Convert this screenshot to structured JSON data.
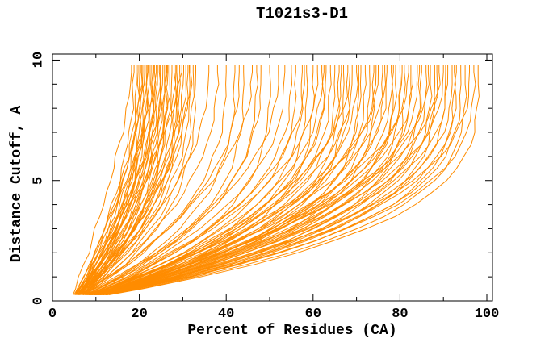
{
  "chart_data": {
    "type": "line",
    "title": "T1021s3-D1",
    "xlabel": "Percent of Residues (CA)",
    "ylabel": "Distance Cutoff, A",
    "xlim": [
      0,
      101.3
    ],
    "ylim": [
      0,
      10.25
    ],
    "x_ticks": [
      0,
      20,
      40,
      60,
      80,
      100
    ],
    "x_minor_ticks": [
      10,
      30,
      50,
      70,
      90
    ],
    "y_ticks": [
      0,
      5,
      10
    ],
    "y_minor_ticks": [
      1,
      2,
      3,
      4,
      6,
      7,
      8,
      9
    ],
    "grid": false,
    "legend": "none",
    "background": "#ffffff",
    "axis_color": "#000000",
    "series_color": "#ff8c00",
    "cutoff_step_A": 0.5,
    "cutoff_max_A": 9.5,
    "curves_schema": [
      "percent_at_9.5A",
      "percent_at_cutoff_0.25A",
      "envelope_exponent_b"
    ],
    "curves": [
      [
        18.2,
        4.2,
        1.4
      ],
      [
        18.8,
        4.6,
        1.9
      ],
      [
        19.3,
        5.0,
        2.1
      ],
      [
        19.7,
        5.4,
        2.3
      ],
      [
        20.1,
        5.8,
        2.5
      ],
      [
        20.4,
        4.2,
        2.7
      ],
      [
        20.8,
        4.6,
        2.9
      ],
      [
        21.2,
        5.0,
        1.5
      ],
      [
        21.6,
        5.4,
        1.9
      ],
      [
        22.0,
        5.8,
        2.1
      ],
      [
        22.3,
        4.2,
        2.3
      ],
      [
        22.7,
        4.6,
        2.5
      ],
      [
        23.1,
        5.0,
        2.7
      ],
      [
        23.5,
        5.4,
        2.9
      ],
      [
        23.9,
        5.8,
        1.3
      ],
      [
        24.2,
        4.2,
        1.9
      ],
      [
        24.6,
        4.6,
        2.1
      ],
      [
        25.0,
        5.0,
        2.3
      ],
      [
        25.4,
        5.4,
        2.5
      ],
      [
        25.8,
        5.8,
        2.7
      ],
      [
        26.2,
        4.2,
        2.9
      ],
      [
        26.6,
        4.6,
        1.45
      ],
      [
        27.0,
        5.0,
        1.9
      ],
      [
        27.5,
        5.4,
        2.1
      ],
      [
        28.0,
        5.8,
        2.3
      ],
      [
        28.4,
        4.2,
        2.5
      ],
      [
        28.9,
        4.6,
        2.7
      ],
      [
        29.3,
        5.0,
        2.9
      ],
      [
        29.8,
        5.4,
        1.35
      ],
      [
        30.2,
        5.8,
        1.9
      ],
      [
        30.7,
        4.2,
        2.1
      ],
      [
        31.2,
        4.6,
        2.3
      ],
      [
        31.8,
        5.0,
        2.5
      ],
      [
        32.4,
        5.4,
        2.7
      ],
      [
        33.0,
        5.8,
        2.9
      ],
      [
        20.5,
        4.2,
        1.8
      ],
      [
        21.9,
        4.6,
        2.0
      ],
      [
        23.3,
        5.0,
        2.2
      ],
      [
        24.8,
        5.4,
        2.4
      ],
      [
        26.4,
        5.8,
        2.6
      ],
      [
        28.6,
        4.2,
        2.8
      ],
      [
        31.5,
        4.6,
        2.0
      ],
      [
        36.0,
        4.4,
        2.0
      ],
      [
        38.0,
        4.8,
        2.25
      ],
      [
        40.0,
        5.2,
        2.5
      ],
      [
        42.0,
        5.6,
        2.75
      ],
      [
        44.0,
        4.4,
        3.0
      ],
      [
        46.0,
        4.8,
        2.0
      ],
      [
        48.0,
        5.2,
        2.5
      ],
      [
        50.0,
        5.6,
        3.0
      ],
      [
        43.0,
        4.4,
        2.25
      ],
      [
        47.0,
        4.8,
        2.75
      ],
      [
        52.0,
        4.3,
        2.2
      ],
      [
        53.5,
        4.7,
        2.4
      ],
      [
        55.0,
        5.1,
        2.6
      ],
      [
        56.0,
        5.5,
        2.8
      ],
      [
        57.5,
        4.9,
        3.0
      ],
      [
        58.5,
        4.3,
        3.2
      ],
      [
        60.0,
        4.7,
        3.4
      ],
      [
        61.0,
        5.1,
        2.2
      ],
      [
        62.0,
        5.5,
        2.4
      ],
      [
        63.0,
        4.9,
        2.6
      ],
      [
        64.0,
        4.3,
        2.8
      ],
      [
        65.0,
        4.7,
        3.0
      ],
      [
        66.0,
        5.1,
        3.2
      ],
      [
        67.0,
        5.5,
        3.4
      ],
      [
        68.0,
        4.9,
        2.2
      ],
      [
        69.0,
        4.3,
        2.4
      ],
      [
        70.0,
        4.7,
        2.6
      ],
      [
        71.0,
        5.1,
        2.8
      ],
      [
        72.0,
        5.5,
        3.0
      ],
      [
        73.0,
        4.9,
        3.2
      ],
      [
        74.0,
        4.3,
        3.4
      ],
      [
        75.0,
        4.7,
        2.2
      ],
      [
        76.0,
        5.1,
        2.4
      ],
      [
        77.0,
        5.5,
        2.6
      ],
      [
        78.0,
        4.9,
        2.8
      ],
      [
        79.0,
        4.3,
        3.0
      ],
      [
        80.0,
        4.7,
        3.2
      ],
      [
        81.0,
        5.1,
        3.4
      ],
      [
        82.0,
        5.5,
        2.2
      ],
      [
        83.0,
        4.9,
        2.4
      ],
      [
        84.0,
        4.3,
        2.6
      ],
      [
        85.0,
        4.7,
        2.8
      ],
      [
        86.0,
        5.1,
        3.0
      ],
      [
        87.0,
        5.5,
        3.2
      ],
      [
        88.0,
        4.9,
        3.4
      ],
      [
        89.0,
        4.3,
        2.2
      ],
      [
        90.0,
        4.7,
        2.4
      ],
      [
        91.0,
        5.1,
        2.6
      ],
      [
        92.0,
        5.5,
        2.8
      ],
      [
        93.0,
        4.9,
        3.0
      ],
      [
        94.0,
        4.3,
        3.2
      ],
      [
        95.0,
        4.7,
        3.4
      ],
      [
        96.0,
        5.1,
        2.6
      ],
      [
        97.0,
        5.5,
        3.0
      ],
      [
        98.0,
        4.9,
        3.4
      ],
      [
        74.5,
        4.3,
        2.3
      ],
      [
        76.5,
        4.7,
        2.7
      ],
      [
        78.5,
        5.1,
        3.1
      ],
      [
        80.5,
        5.5,
        2.5
      ],
      [
        82.5,
        4.9,
        2.9
      ],
      [
        84.5,
        4.3,
        3.3
      ],
      [
        86.5,
        4.7,
        2.3
      ],
      [
        88.5,
        5.1,
        2.7
      ],
      [
        90.5,
        5.5,
        3.1
      ],
      [
        92.5,
        4.9,
        3.3
      ],
      [
        66.5,
        4.3,
        2.5
      ],
      [
        68.5,
        4.7,
        2.9
      ],
      [
        70.5,
        5.1,
        3.3
      ],
      [
        62.5,
        5.5,
        2.7
      ],
      [
        58.0,
        4.9,
        2.3
      ]
    ]
  }
}
